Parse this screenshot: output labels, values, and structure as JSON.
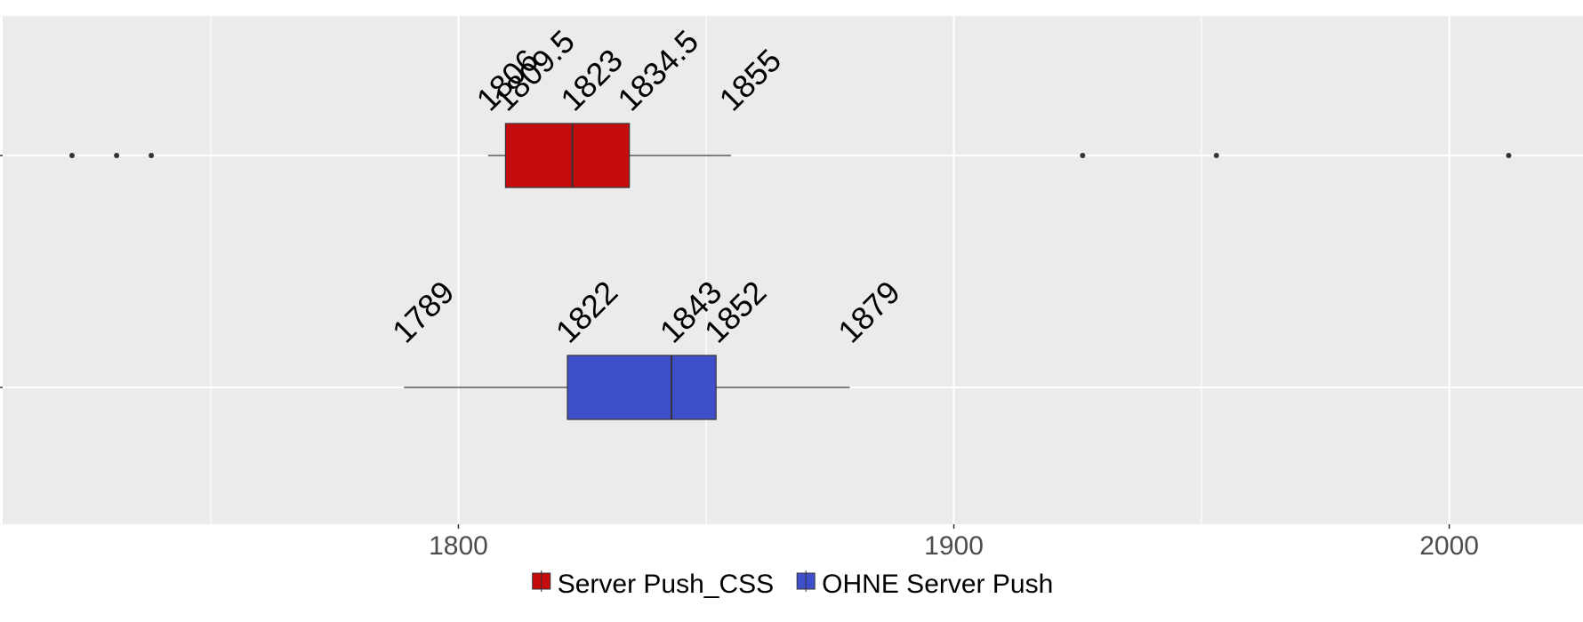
{
  "chart_data": {
    "type": "boxplot",
    "orientation": "horizontal",
    "xlim": [
      1708,
      2027
    ],
    "x_ticks": [
      1800,
      1900,
      2000
    ],
    "x_tick_labels": [
      "1800",
      "1900",
      "2000"
    ],
    "grid": true,
    "legend_position": "bottom",
    "series": [
      {
        "name": "Server Push_CSS",
        "color": "#c40c0c",
        "whisker_low": 1806,
        "q1": 1809.5,
        "median": 1823,
        "q3": 1834.5,
        "whisker_high": 1855,
        "outliers": [
          1722,
          1731,
          1738,
          1926,
          1953,
          2012
        ],
        "labels": [
          "1806",
          "1809.5",
          "1823",
          "1834.5",
          "1855"
        ]
      },
      {
        "name": "OHNE Server Push",
        "color": "#3f4fcc",
        "whisker_low": 1789,
        "q1": 1822,
        "median": 1843,
        "q3": 1852,
        "whisker_high": 1879,
        "outliers": [],
        "labels": [
          "1789",
          "1822",
          "1843",
          "1852",
          "1879"
        ]
      }
    ]
  }
}
